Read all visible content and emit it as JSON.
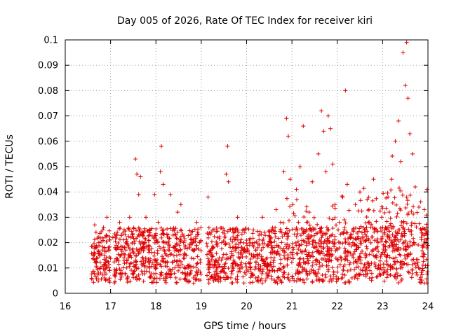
{
  "chart_data": {
    "type": "scatter",
    "title": "Day 005 of 2026, Rate Of TEC Index for receiver kiri",
    "xlabel": "GPS time / hours",
    "ylabel": "ROTI / TECUs",
    "xlim": [
      16,
      24
    ],
    "ylim": [
      0,
      0.1
    ],
    "grid": true,
    "marker": "+",
    "color": "#e00000",
    "x_ticks": [
      "16",
      "17",
      "18",
      "19",
      "20",
      "21",
      "22",
      "23",
      "24"
    ],
    "y_ticks": [
      "0",
      "0.01",
      "0.02",
      "0.03",
      "0.04",
      "0.05",
      "0.06",
      "0.07",
      "0.08",
      "0.09",
      "0.1"
    ],
    "series": [
      {
        "name": "ROTI",
        "x": [
          16.62,
          16.65,
          16.7,
          16.74,
          16.78,
          16.83,
          16.88,
          16.92,
          16.95,
          16.98,
          17.05,
          17.12,
          17.2,
          17.3,
          17.42,
          17.5,
          17.55,
          17.58,
          17.62,
          17.66,
          17.7,
          17.78,
          17.86,
          17.92,
          17.97,
          18.05,
          18.1,
          18.12,
          18.16,
          18.2,
          18.25,
          18.32,
          18.4,
          18.48,
          18.55,
          18.62,
          18.7,
          18.8,
          18.9,
          18.98,
          19.15,
          19.25,
          19.35,
          19.45,
          19.55,
          19.58,
          19.6,
          19.7,
          19.8,
          19.9,
          20.05,
          20.15,
          20.25,
          20.35,
          20.45,
          20.55,
          20.65,
          20.75,
          20.82,
          20.88,
          20.92,
          20.96,
          21.02,
          21.1,
          21.18,
          21.25,
          21.32,
          21.38,
          21.45,
          21.52,
          21.58,
          21.65,
          21.7,
          21.75,
          21.8,
          21.85,
          21.9,
          21.95,
          22.05,
          22.12,
          22.18,
          22.22,
          22.3,
          22.4,
          22.5,
          22.6,
          22.7,
          22.8,
          22.9,
          22.98,
          23.05,
          23.12,
          23.2,
          23.28,
          23.35,
          23.4,
          23.45,
          23.5,
          23.53,
          23.56,
          23.6,
          23.66,
          23.72,
          23.8,
          23.86,
          23.92,
          23.98
        ],
        "y": [
          0.015,
          0.027,
          0.01,
          0.02,
          0.008,
          0.025,
          0.012,
          0.03,
          0.018,
          0.006,
          0.022,
          0.009,
          0.028,
          0.014,
          0.03,
          0.012,
          0.053,
          0.047,
          0.039,
          0.046,
          0.018,
          0.03,
          0.025,
          0.012,
          0.039,
          0.028,
          0.048,
          0.058,
          0.043,
          0.02,
          0.012,
          0.039,
          0.025,
          0.032,
          0.035,
          0.015,
          0.008,
          0.02,
          0.028,
          0.012,
          0.038,
          0.025,
          0.012,
          0.02,
          0.047,
          0.058,
          0.044,
          0.015,
          0.03,
          0.01,
          0.012,
          0.025,
          0.018,
          0.03,
          0.008,
          0.02,
          0.033,
          0.028,
          0.048,
          0.069,
          0.062,
          0.045,
          0.035,
          0.041,
          0.05,
          0.066,
          0.028,
          0.032,
          0.044,
          0.02,
          0.055,
          0.072,
          0.064,
          0.048,
          0.07,
          0.065,
          0.051,
          0.035,
          0.028,
          0.038,
          0.08,
          0.043,
          0.022,
          0.035,
          0.04,
          0.025,
          0.033,
          0.045,
          0.02,
          0.03,
          0.025,
          0.038,
          0.045,
          0.06,
          0.068,
          0.052,
          0.095,
          0.082,
          0.099,
          0.077,
          0.063,
          0.055,
          0.042,
          0.034,
          0.025,
          0.033,
          0.041
        ]
      }
    ]
  }
}
